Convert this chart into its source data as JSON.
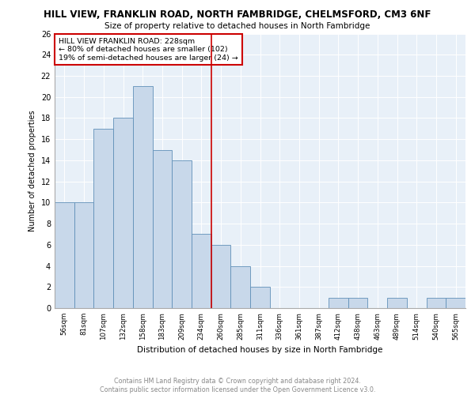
{
  "title": "HILL VIEW, FRANKLIN ROAD, NORTH FAMBRIDGE, CHELMSFORD, CM3 6NF",
  "subtitle": "Size of property relative to detached houses in North Fambridge",
  "xlabel": "Distribution of detached houses by size in North Fambridge",
  "ylabel": "Number of detached properties",
  "categories": [
    "56sqm",
    "81sqm",
    "107sqm",
    "132sqm",
    "158sqm",
    "183sqm",
    "209sqm",
    "234sqm",
    "260sqm",
    "285sqm",
    "311sqm",
    "336sqm",
    "361sqm",
    "387sqm",
    "412sqm",
    "438sqm",
    "463sqm",
    "489sqm",
    "514sqm",
    "540sqm",
    "565sqm"
  ],
  "values": [
    10,
    10,
    17,
    18,
    21,
    15,
    14,
    7,
    6,
    4,
    2,
    0,
    0,
    0,
    1,
    1,
    0,
    1,
    0,
    1,
    1
  ],
  "bar_color": "#c8d8ea",
  "bar_edge_color": "#6090b8",
  "vline_x": 7.5,
  "vline_color": "#cc0000",
  "annotation_line1": "HILL VIEW FRANKLIN ROAD: 228sqm",
  "annotation_line2": "← 80% of detached houses are smaller (102)",
  "annotation_line3": "19% of semi-detached houses are larger (24) →",
  "annotation_box_color": "#cc0000",
  "ylim": [
    0,
    26
  ],
  "yticks": [
    0,
    2,
    4,
    6,
    8,
    10,
    12,
    14,
    16,
    18,
    20,
    22,
    24,
    26
  ],
  "bg_color": "#e8f0f8",
  "footer_line1": "Contains HM Land Registry data © Crown copyright and database right 2024.",
  "footer_line2": "Contains public sector information licensed under the Open Government Licence v3.0."
}
